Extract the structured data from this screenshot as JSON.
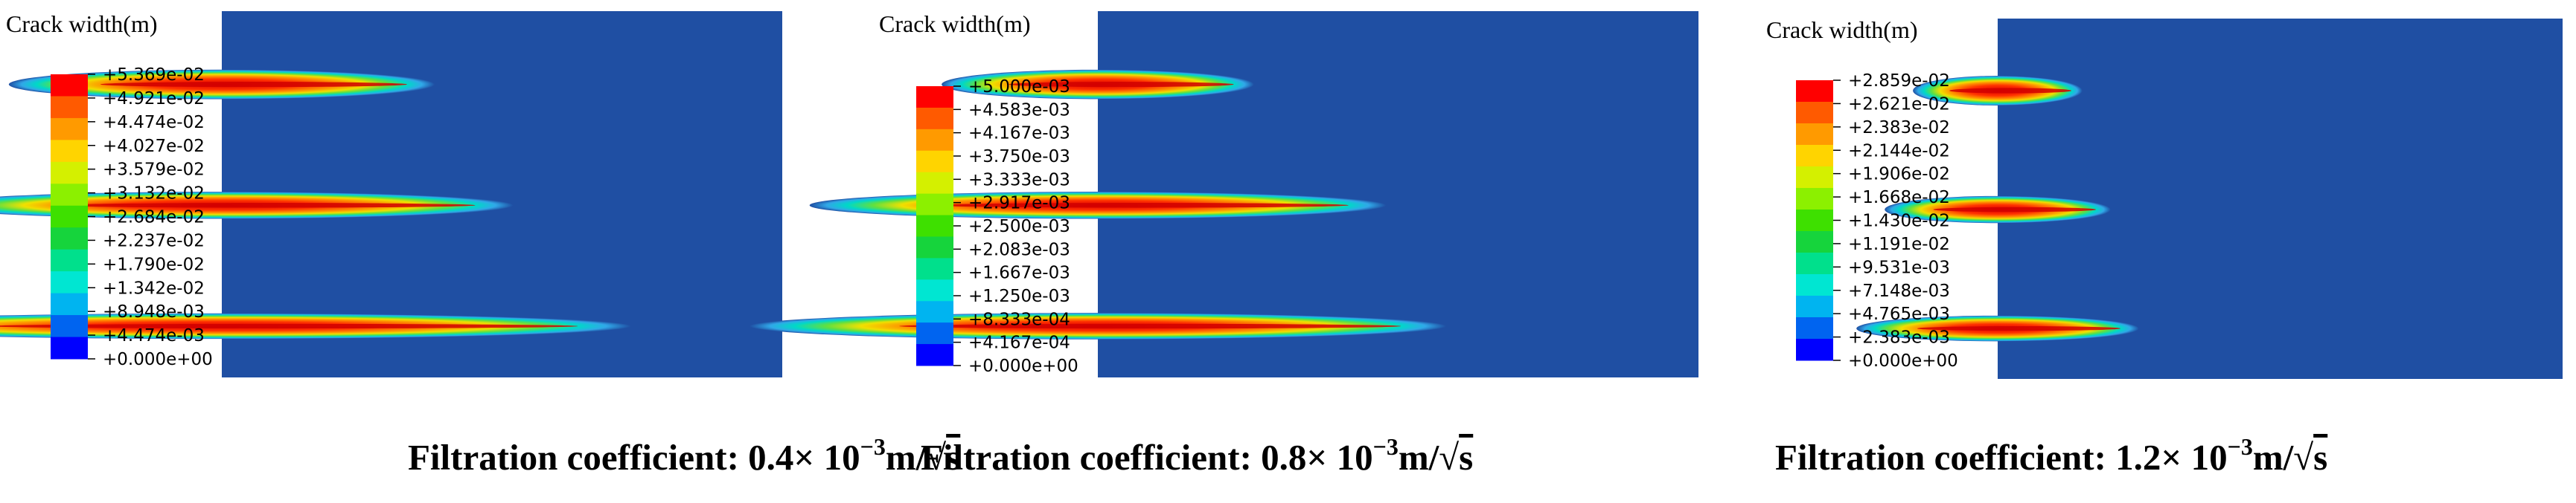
{
  "chart_data": [
    {
      "type": "heatmap",
      "legend_title": "Crack width(m)",
      "tick_labels": [
        "+5.369e-02",
        "+4.921e-02",
        "+4.474e-02",
        "+4.027e-02",
        "+3.579e-02",
        "+3.132e-02",
        "+2.684e-02",
        "+2.237e-02",
        "+1.790e-02",
        "+1.342e-02",
        "+8.948e-03",
        "+4.474e-03",
        "+0.000e+00"
      ],
      "colorbar_colors": [
        "#ff0000",
        "#ff5a00",
        "#ff9a00",
        "#ffd400",
        "#d4f000",
        "#8cf000",
        "#3ee000",
        "#16d43c",
        "#00e08c",
        "#00e6d2",
        "#00b4f0",
        "#0064f0",
        "#0000ff"
      ],
      "value_range": [
        0,
        0.05369
      ],
      "background_color": "#1f4fa3",
      "cracks": [
        {
          "length": 0.38,
          "peak": 0.053
        },
        {
          "length": 0.52,
          "peak": 0.045
        },
        {
          "length": 0.73,
          "peak": 0.04
        }
      ],
      "caption": {
        "prefix": "Filtration coefficient: 0.4× 10",
        "exponent": "−3",
        "suffix": "m/",
        "radical": "√",
        "radicand": "s"
      }
    },
    {
      "type": "heatmap",
      "legend_title": "Crack width(m)",
      "tick_labels": [
        "+5.000e-03",
        "+4.583e-03",
        "+4.167e-03",
        "+3.750e-03",
        "+3.333e-03",
        "+2.917e-03",
        "+2.500e-03",
        "+2.083e-03",
        "+1.667e-03",
        "+1.250e-03",
        "+8.333e-04",
        "+4.167e-04",
        "+0.000e+00"
      ],
      "colorbar_colors": [
        "#ff0000",
        "#ff5a00",
        "#ff9a00",
        "#ffd400",
        "#d4f000",
        "#8cf000",
        "#3ee000",
        "#16d43c",
        "#00e08c",
        "#00e6d2",
        "#00b4f0",
        "#0064f0",
        "#0000ff"
      ],
      "value_range": [
        0,
        0.005
      ],
      "background_color": "#1f4fa3",
      "cracks": [
        {
          "length": 0.26,
          "peak": 0.0049
        },
        {
          "length": 0.48,
          "peak": 0.0042
        },
        {
          "length": 0.58,
          "peak": 0.004
        }
      ],
      "caption": {
        "prefix": "Filtration coefficient: 0.8× 10",
        "exponent": "−3",
        "suffix": "m/",
        "radical": "√",
        "radicand": "s"
      }
    },
    {
      "type": "heatmap",
      "legend_title": "Crack width(m)",
      "tick_labels": [
        "+2.859e-02",
        "+2.621e-02",
        "+2.383e-02",
        "+2.144e-02",
        "+1.906e-02",
        "+1.668e-02",
        "+1.430e-02",
        "+1.191e-02",
        "+9.531e-03",
        "+7.148e-03",
        "+4.765e-03",
        "+2.383e-03",
        "+0.000e+00"
      ],
      "colorbar_colors": [
        "#ff0000",
        "#ff5a00",
        "#ff9a00",
        "#ffd400",
        "#d4f000",
        "#8cf000",
        "#3ee000",
        "#16d43c",
        "#00e08c",
        "#00e6d2",
        "#00b4f0",
        "#0064f0",
        "#0000ff"
      ],
      "value_range": [
        0,
        0.02859
      ],
      "background_color": "#1f4fa3",
      "cracks": [
        {
          "length": 0.15,
          "peak": 0.0285
        },
        {
          "length": 0.2,
          "peak": 0.024
        },
        {
          "length": 0.25,
          "peak": 0.0215
        }
      ],
      "caption": {
        "prefix": "Filtration coefficient: 1.2× 10",
        "exponent": "−3",
        "suffix": "m/",
        "radical": "√",
        "radicand": "s"
      }
    }
  ]
}
